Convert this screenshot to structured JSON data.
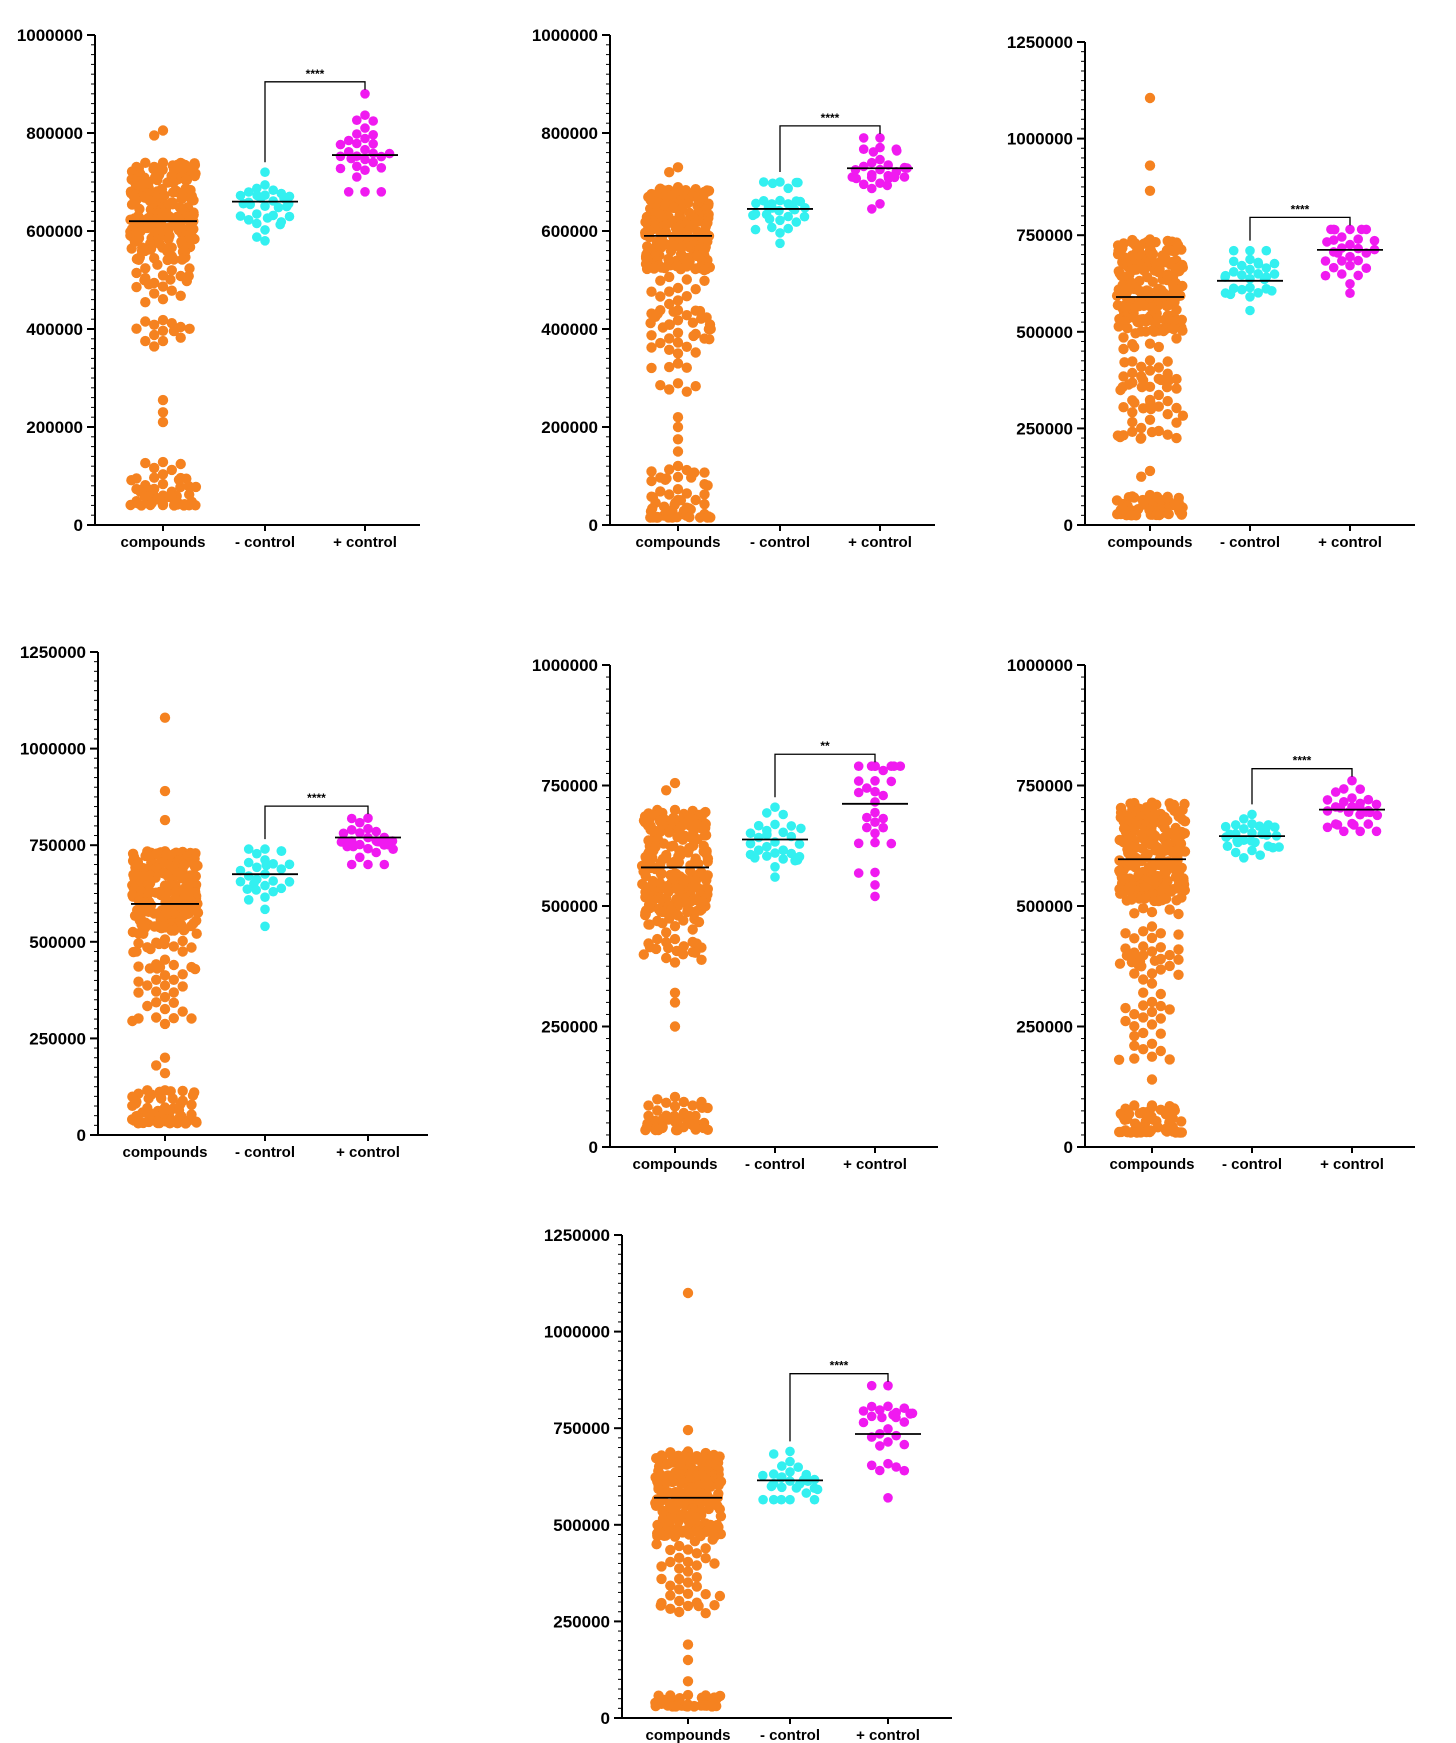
{
  "colors": {
    "compounds": "#F58220",
    "neg_control": "#33F0F0",
    "pos_control": "#F01AF0",
    "axis": "#000000"
  },
  "chart_data": [
    {
      "type": "scatter",
      "categories": [
        "compounds",
        "- control",
        "+ control"
      ],
      "ylim": [
        0,
        1000000
      ],
      "yticks": [
        "0",
        "200000",
        "400000",
        "600000",
        "800000",
        "1000000"
      ],
      "minor_per_major": 10,
      "groups": [
        {
          "name": "compounds",
          "mean": 620000,
          "core": [
            540000,
            740000
          ],
          "tail": [
            360000,
            540000
          ],
          "outliers": [
            805000,
            795000,
            255000,
            230000,
            210000
          ],
          "low": [
            40000,
            130000
          ],
          "n_core": 230,
          "n_tail": 35,
          "n_low": 55
        },
        {
          "name": "- control",
          "mean": 660000,
          "range": [
            580000,
            720000
          ],
          "n": 32
        },
        {
          "name": "+ control",
          "mean": 755000,
          "range": [
            680000,
            880000
          ],
          "n": 30
        }
      ],
      "significance": "****"
    },
    {
      "type": "scatter",
      "categories": [
        "compounds",
        "- control",
        "+ control"
      ],
      "ylim": [
        0,
        1000000
      ],
      "yticks": [
        "0",
        "200000",
        "400000",
        "600000",
        "800000",
        "1000000"
      ],
      "minor_per_major": 10,
      "groups": [
        {
          "name": "compounds",
          "mean": 590000,
          "core": [
            520000,
            690000
          ],
          "tail": [
            270000,
            520000
          ],
          "outliers": [
            730000,
            720000,
            220000,
            200000,
            175000,
            150000
          ],
          "low": [
            15000,
            130000
          ],
          "n_core": 230,
          "n_tail": 55,
          "n_low": 60
        },
        {
          "name": "- control",
          "mean": 645000,
          "range": [
            575000,
            700000
          ],
          "n": 32
        },
        {
          "name": "+ control",
          "mean": 728000,
          "range": [
            645000,
            790000
          ],
          "n": 30
        }
      ],
      "significance": "****"
    },
    {
      "type": "scatter",
      "categories": [
        "compounds",
        "- control",
        "+ control"
      ],
      "ylim": [
        0,
        1250000
      ],
      "yticks": [
        "0",
        "250000",
        "500000",
        "750000",
        "1000000",
        "1250000"
      ],
      "minor_per_major": 10,
      "groups": [
        {
          "name": "compounds",
          "mean": 590000,
          "core": [
            500000,
            740000
          ],
          "tail": [
            220000,
            500000
          ],
          "outliers": [
            1105000,
            930000,
            865000,
            140000,
            125000
          ],
          "low": [
            25000,
            80000
          ],
          "n_core": 230,
          "n_tail": 60,
          "n_low": 55
        },
        {
          "name": "- control",
          "mean": 632000,
          "range": [
            555000,
            710000
          ],
          "n": 30
        },
        {
          "name": "+ control",
          "mean": 712000,
          "range": [
            600000,
            765000
          ],
          "n": 30
        }
      ],
      "significance": "****"
    },
    {
      "type": "scatter",
      "categories": [
        "compounds",
        "- control",
        "+ control"
      ],
      "ylim": [
        0,
        1250000
      ],
      "yticks": [
        "0",
        "250000",
        "500000",
        "750000",
        "1000000",
        "1250000"
      ],
      "minor_per_major": 10,
      "groups": [
        {
          "name": "compounds",
          "mean": 598000,
          "core": [
            520000,
            735000
          ],
          "tail": [
            280000,
            520000
          ],
          "outliers": [
            1080000,
            890000,
            815000,
            200000,
            180000,
            160000
          ],
          "low": [
            30000,
            120000
          ],
          "n_core": 230,
          "n_tail": 45,
          "n_low": 60
        },
        {
          "name": "- control",
          "mean": 675000,
          "range": [
            540000,
            740000
          ],
          "n": 30
        },
        {
          "name": "+ control",
          "mean": 770000,
          "range": [
            700000,
            820000
          ],
          "n": 30
        }
      ],
      "significance": "****"
    },
    {
      "type": "scatter",
      "categories": [
        "compounds",
        "- control",
        "+ control"
      ],
      "ylim": [
        0,
        1000000
      ],
      "yticks": [
        "0",
        "250000",
        "500000",
        "750000",
        "1000000"
      ],
      "minor_per_major": 10,
      "groups": [
        {
          "name": "compounds",
          "mean": 580000,
          "core": [
            480000,
            700000
          ],
          "tail": [
            380000,
            480000
          ],
          "outliers": [
            755000,
            740000,
            320000,
            300000,
            250000
          ],
          "low": [
            35000,
            105000
          ],
          "n_core": 230,
          "n_tail": 30,
          "n_low": 45
        },
        {
          "name": "- control",
          "mean": 638000,
          "range": [
            560000,
            705000
          ],
          "n": 30
        },
        {
          "name": "+ control",
          "mean": 712000,
          "range": [
            520000,
            790000
          ],
          "n": 30
        }
      ],
      "significance": "**"
    },
    {
      "type": "scatter",
      "categories": [
        "compounds",
        "- control",
        "+ control"
      ],
      "ylim": [
        0,
        1000000
      ],
      "yticks": [
        "0",
        "250000",
        "500000",
        "750000",
        "1000000"
      ],
      "minor_per_major": 10,
      "groups": [
        {
          "name": "compounds",
          "mean": 597000,
          "core": [
            510000,
            715000
          ],
          "tail": [
            180000,
            510000
          ],
          "outliers": [
            235000,
            230000,
            210000,
            140000
          ],
          "low": [
            30000,
            90000
          ],
          "n_core": 230,
          "n_tail": 60,
          "n_low": 55
        },
        {
          "name": "- control",
          "mean": 645000,
          "range": [
            600000,
            690000
          ],
          "n": 30
        },
        {
          "name": "+ control",
          "mean": 700000,
          "range": [
            655000,
            760000
          ],
          "n": 30
        }
      ],
      "significance": "****"
    },
    {
      "type": "scatter",
      "categories": [
        "compounds",
        "- control",
        "+ control"
      ],
      "ylim": [
        0,
        1250000
      ],
      "yticks": [
        "0",
        "250000",
        "500000",
        "750000",
        "1000000",
        "1250000"
      ],
      "minor_per_major": 10,
      "groups": [
        {
          "name": "compounds",
          "mean": 570000,
          "core": [
            470000,
            690000
          ],
          "tail": [
            270000,
            470000
          ],
          "outliers": [
            1100000,
            745000,
            190000,
            150000,
            95000
          ],
          "low": [
            30000,
            60000
          ],
          "n_core": 230,
          "n_tail": 40,
          "n_low": 40
        },
        {
          "name": "- control",
          "mean": 615000,
          "range": [
            565000,
            690000
          ],
          "n": 30
        },
        {
          "name": "+ control",
          "mean": 735000,
          "range": [
            570000,
            860000
          ],
          "n": 30
        }
      ],
      "significance": "****"
    }
  ]
}
